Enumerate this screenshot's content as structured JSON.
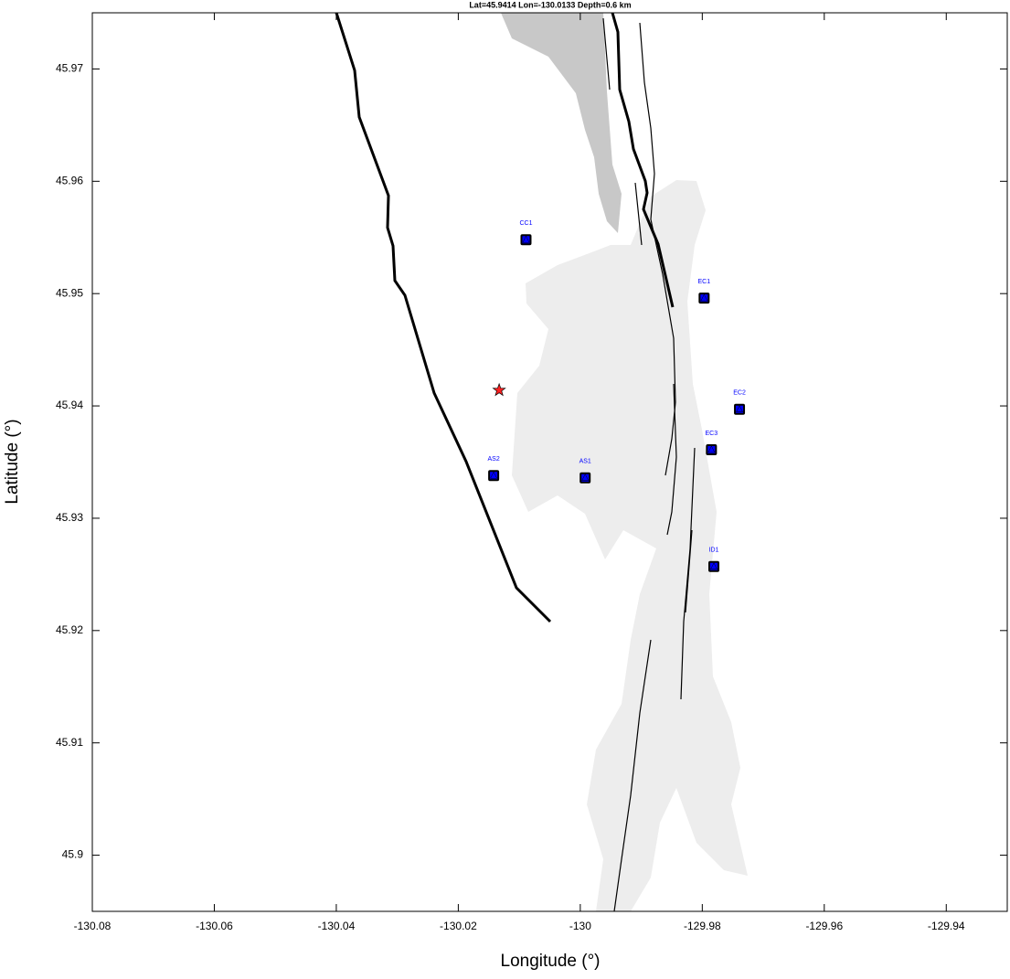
{
  "chart_data": {
    "type": "scatter",
    "title": "Lat=45.9414  Lon=-130.0133  Depth=0.6 km",
    "x_label": "Longitude (°)",
    "y_label": "Latitude (°)",
    "xlim": [
      -130.08,
      -129.93
    ],
    "xticks": [
      -130.08,
      -130.06,
      -130.04,
      -130.02,
      -130,
      -129.98,
      -129.96,
      -129.94
    ],
    "ylim": [
      45.895,
      45.975
    ],
    "yticks": [
      45.9,
      45.91,
      45.92,
      45.93,
      45.94,
      45.95,
      45.96,
      45.97
    ],
    "grid": false,
    "stations": {
      "color": "#0000ff",
      "labels": [
        "CC1",
        "EC1",
        "EC2",
        "EC3",
        "AS2",
        "AS1",
        "ID1"
      ],
      "x": [
        -130.0089,
        -129.9797,
        -129.9739,
        -129.9785,
        -130.0142,
        -129.9992,
        -129.9781
      ],
      "y": [
        45.9548,
        45.9496,
        45.9397,
        45.9361,
        45.9338,
        45.9336,
        45.9257
      ]
    },
    "epicenter": {
      "color": "#ff2020",
      "x": -130.0133,
      "y": 45.9414
    }
  }
}
